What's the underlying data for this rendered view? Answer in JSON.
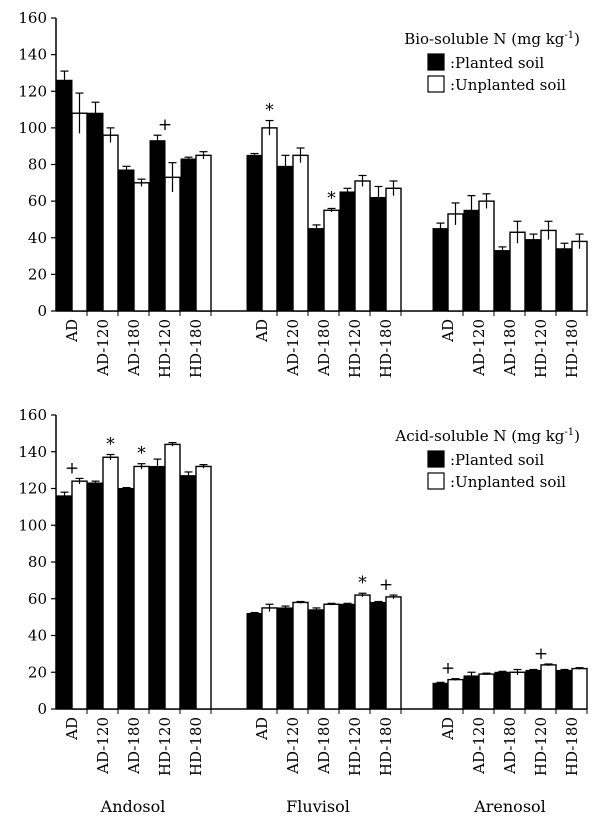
{
  "chart_data": [
    {
      "type": "bar",
      "ylim": [
        0,
        160
      ],
      "yticks": [
        0,
        20,
        40,
        60,
        80,
        100,
        120,
        140,
        160
      ],
      "legend": {
        "title": "Bio-soluble N (mg kg",
        "title_sup": "-1",
        "title_end": ")",
        "items": [
          ":Planted soil",
          ":Unplanted soil"
        ]
      },
      "groups": [
        {
          "categories": [
            "AD",
            "AD-120",
            "AD-180",
            "HD-120",
            "HD-180"
          ],
          "planted": [
            126,
            108,
            77,
            93,
            83
          ],
          "planted_err": [
            5,
            6,
            2,
            3,
            1
          ],
          "unplanted": [
            108,
            96,
            70,
            73,
            85
          ],
          "unplanted_err": [
            11,
            4,
            2,
            8,
            2
          ],
          "marks": [
            "",
            "",
            "",
            "+",
            ""
          ]
        },
        {
          "categories": [
            "AD",
            "AD-120",
            "AD-180",
            "HD-120",
            "HD-180"
          ],
          "planted": [
            85,
            79,
            45,
            65,
            62
          ],
          "planted_err": [
            1,
            6,
            2,
            2,
            6
          ],
          "unplanted": [
            100,
            85,
            55,
            71,
            67
          ],
          "unplanted_err": [
            4,
            4,
            1,
            3,
            4
          ],
          "marks": [
            "*",
            "",
            "*",
            "",
            ""
          ]
        },
        {
          "categories": [
            "AD",
            "AD-120",
            "AD-180",
            "HD-120",
            "HD-180"
          ],
          "planted": [
            45,
            55,
            33,
            39,
            34
          ],
          "planted_err": [
            3,
            8,
            2,
            3,
            3
          ],
          "unplanted": [
            53,
            60,
            43,
            44,
            38
          ],
          "unplanted_err": [
            6,
            4,
            6,
            5,
            4
          ],
          "marks": [
            "",
            "",
            "",
            "",
            ""
          ]
        }
      ]
    },
    {
      "type": "bar",
      "ylim": [
        0,
        160
      ],
      "yticks": [
        0,
        20,
        40,
        60,
        80,
        100,
        120,
        140,
        160
      ],
      "legend": {
        "title": "Acid-soluble N (mg kg",
        "title_sup": "-1",
        "title_end": ")",
        "items": [
          ":Planted soil",
          ":Unplanted soil"
        ]
      },
      "groups": [
        {
          "categories": [
            "AD",
            "AD-120",
            "AD-180",
            "HD-120",
            "HD-180"
          ],
          "planted": [
            116,
            123,
            120,
            132,
            127
          ],
          "planted_err": [
            2,
            1,
            0.5,
            4,
            2
          ],
          "unplanted": [
            124,
            137,
            132,
            144,
            132
          ],
          "unplanted_err": [
            1.5,
            1.5,
            1.5,
            1,
            1
          ],
          "marks": [
            "+",
            "*",
            "*",
            "",
            ""
          ]
        },
        {
          "categories": [
            "AD",
            "AD-120",
            "AD-180",
            "HD-120",
            "HD-180"
          ],
          "planted": [
            52,
            55,
            54,
            57,
            58
          ],
          "planted_err": [
            0.5,
            1,
            1,
            0.5,
            0.5
          ],
          "unplanted": [
            55,
            58,
            57,
            62,
            61
          ],
          "unplanted_err": [
            2,
            0.5,
            0.5,
            1,
            1
          ],
          "marks": [
            "",
            "",
            "",
            "*",
            "+"
          ]
        },
        {
          "categories": [
            "AD",
            "AD-120",
            "AD-180",
            "HD-120",
            "HD-180"
          ],
          "planted": [
            14,
            18,
            20,
            21,
            21
          ],
          "planted_err": [
            0.5,
            2,
            0.5,
            0.5,
            0.5
          ],
          "unplanted": [
            16,
            19,
            20,
            24,
            22
          ],
          "unplanted_err": [
            0.5,
            0.5,
            1.5,
            0.5,
            0.5
          ],
          "marks": [
            "+",
            "",
            "",
            "+",
            ""
          ]
        }
      ]
    }
  ],
  "soils": [
    "Andosol",
    "Fluvisol",
    "Arenosol"
  ],
  "colors": {
    "planted": "#000000",
    "unplanted": "#ffffff",
    "axis": "#000000"
  }
}
